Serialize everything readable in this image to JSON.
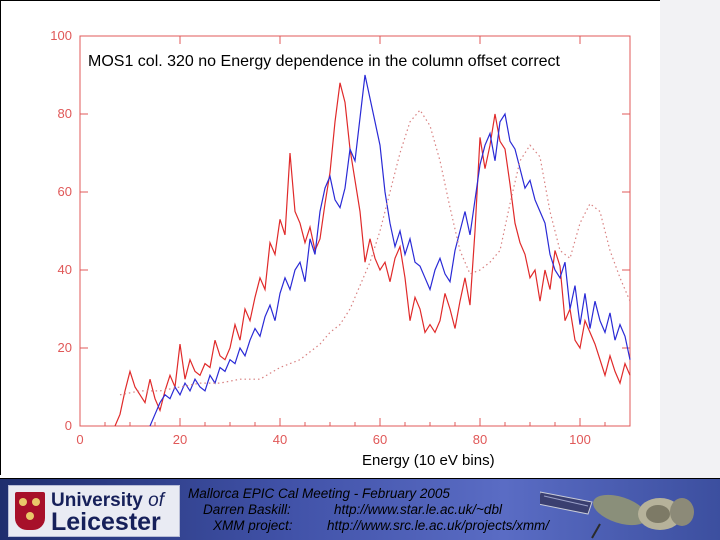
{
  "chart_data": {
    "type": "line",
    "title": "MOS1 col. 320 no Energy dependence in the column offset correct",
    "xlabel": "Energy (10 eV bins)",
    "ylabel": "",
    "xlim": [
      0,
      110
    ],
    "ylim": [
      0,
      100
    ],
    "xticks": [
      "0",
      "20",
      "40",
      "60",
      "80",
      "100"
    ],
    "yticks": [
      "0",
      "20",
      "40",
      "60",
      "80",
      "100"
    ],
    "colors": {
      "axes": "#e05858",
      "red": "#e02a2a",
      "blue": "#2a2ad6",
      "dotted": "#d88080"
    },
    "series": [
      {
        "name": "red",
        "style": "solid",
        "x": [
          7,
          8,
          9,
          10,
          11,
          12,
          13,
          14,
          15,
          16,
          17,
          18,
          19,
          20,
          21,
          22,
          23,
          24,
          25,
          26,
          27,
          28,
          29,
          30,
          31,
          32,
          33,
          34,
          35,
          36,
          37,
          38,
          39,
          40,
          41,
          42,
          43,
          44,
          45,
          46,
          47,
          48,
          49,
          50,
          51,
          52,
          53,
          54,
          55,
          56,
          57,
          58,
          59,
          60,
          61,
          62,
          63,
          64,
          65,
          66,
          67,
          68,
          69,
          70,
          71,
          72,
          73,
          74,
          75,
          76,
          77,
          78,
          79,
          80,
          81,
          82,
          83,
          84,
          85,
          86,
          87,
          88,
          89,
          90,
          91,
          92,
          93,
          94,
          95,
          96,
          97,
          98,
          99,
          100,
          101,
          102,
          103,
          104,
          105,
          106,
          107,
          108,
          109,
          110
        ],
        "y": [
          0,
          3,
          9,
          14,
          10,
          8,
          6,
          12,
          7,
          4,
          9,
          13,
          10,
          21,
          12,
          17,
          14,
          13,
          16,
          15,
          22,
          18,
          17,
          20,
          26,
          22,
          30,
          27,
          33,
          38,
          35,
          47,
          44,
          53,
          49,
          70,
          55,
          52,
          47,
          51,
          45,
          48,
          57,
          65,
          78,
          88,
          83,
          71,
          63,
          55,
          42,
          48,
          43,
          40,
          42,
          37,
          43,
          46,
          38,
          27,
          33,
          30,
          24,
          26,
          24,
          27,
          34,
          30,
          25,
          32,
          38,
          31,
          50,
          74,
          66,
          72,
          80,
          73,
          71,
          62,
          52,
          47,
          44,
          38,
          40,
          32,
          40,
          35,
          45,
          41,
          27,
          30,
          22,
          20,
          27,
          24,
          21,
          17,
          13,
          18,
          14,
          11,
          16,
          13
        ]
      },
      {
        "name": "blue",
        "style": "solid",
        "x": [
          14,
          15,
          16,
          17,
          18,
          19,
          20,
          21,
          22,
          23,
          24,
          25,
          26,
          27,
          28,
          29,
          30,
          31,
          32,
          33,
          34,
          35,
          36,
          37,
          38,
          39,
          40,
          41,
          42,
          43,
          44,
          45,
          46,
          47,
          48,
          49,
          50,
          51,
          52,
          53,
          54,
          55,
          56,
          57,
          58,
          59,
          60,
          61,
          62,
          63,
          64,
          65,
          66,
          67,
          68,
          69,
          70,
          71,
          72,
          73,
          74,
          75,
          76,
          77,
          78,
          79,
          80,
          81,
          82,
          83,
          84,
          85,
          86,
          87,
          88,
          89,
          90,
          91,
          92,
          93,
          94,
          95,
          96,
          97,
          98,
          99,
          100,
          101,
          102,
          103,
          104,
          105,
          106,
          107,
          108,
          109,
          110
        ],
        "y": [
          0,
          3,
          6,
          8,
          7,
          10,
          8,
          11,
          9,
          12,
          10,
          9,
          13,
          11,
          15,
          14,
          17,
          16,
          20,
          18,
          22,
          25,
          23,
          28,
          31,
          27,
          34,
          38,
          35,
          40,
          42,
          37,
          48,
          44,
          55,
          61,
          64,
          58,
          56,
          61,
          71,
          68,
          79,
          90,
          84,
          78,
          72,
          60,
          52,
          46,
          50,
          44,
          48,
          42,
          41,
          38,
          35,
          40,
          43,
          39,
          37,
          45,
          50,
          55,
          49,
          58,
          67,
          72,
          75,
          68,
          78,
          80,
          73,
          71,
          66,
          61,
          63,
          58,
          55,
          52,
          44,
          40,
          38,
          42,
          30,
          36,
          26,
          34,
          25,
          32,
          27,
          24,
          29,
          22,
          26,
          23,
          17
        ]
      },
      {
        "name": "dotted",
        "style": "dotted",
        "x": [
          8,
          12,
          16,
          20,
          24,
          28,
          32,
          36,
          40,
          44,
          46,
          48,
          50,
          52,
          54,
          56,
          58,
          60,
          62,
          64,
          66,
          68,
          70,
          72,
          74,
          76,
          78,
          80,
          82,
          84,
          86,
          88,
          90,
          92,
          94,
          96,
          98,
          100,
          102,
          104,
          106,
          108,
          110
        ],
        "y": [
          8,
          9,
          9,
          10,
          11,
          11,
          12,
          12,
          15,
          17,
          19,
          21,
          24,
          26,
          30,
          36,
          42,
          50,
          60,
          70,
          78,
          81,
          77,
          68,
          56,
          45,
          39,
          40,
          42,
          45,
          57,
          68,
          72,
          69,
          55,
          45,
          43,
          52,
          57,
          55,
          45,
          38,
          32
        ]
      }
    ]
  },
  "footer": {
    "university_line1": "University",
    "university_of": "of",
    "university_line2": "Leicester",
    "meeting": "Mallorca EPIC Cal Meeting - February 2005",
    "presenter_label": "Darren Baskill:",
    "presenter_url": "http://www.star.le.ac.uk/~dbl",
    "project_label": "XMM project:",
    "project_url": "http://www.src.le.ac.uk/projects/xmm/"
  }
}
